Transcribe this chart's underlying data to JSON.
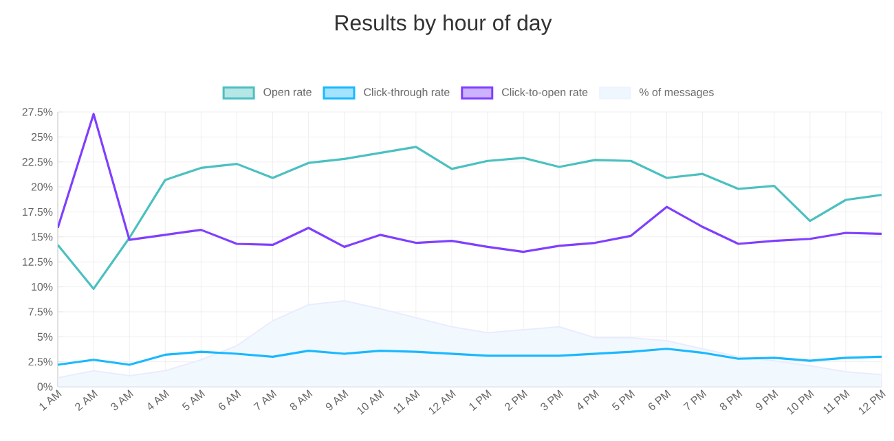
{
  "chart_data": {
    "type": "line",
    "title": "Results by hour of day",
    "categories": [
      "1 AM",
      "2 AM",
      "3 AM",
      "4 AM",
      "5 AM",
      "6 AM",
      "7 AM",
      "8 AM",
      "9 AM",
      "10 AM",
      "11 AM",
      "12 AM",
      "1 PM",
      "2 PM",
      "3 PM",
      "4 PM",
      "5 PM",
      "6 PM",
      "7 PM",
      "8 PM",
      "9 PM",
      "10 PM",
      "11 PM",
      "12 PM"
    ],
    "series": [
      {
        "name": "Open rate",
        "color": "#4bc0c0",
        "values": [
          14.2,
          9.8,
          14.9,
          20.7,
          21.9,
          22.3,
          20.9,
          22.4,
          22.8,
          23.4,
          24.0,
          21.8,
          22.6,
          22.9,
          22.0,
          22.7,
          22.6,
          20.9,
          21.3,
          19.8,
          20.1,
          16.6,
          18.7,
          19.2
        ]
      },
      {
        "name": "Click-through rate",
        "color": "#1ab8ff",
        "values": [
          2.2,
          2.7,
          2.2,
          3.2,
          3.5,
          3.3,
          3.0,
          3.6,
          3.3,
          3.6,
          3.5,
          3.3,
          3.1,
          3.1,
          3.1,
          3.3,
          3.5,
          3.8,
          3.4,
          2.8,
          2.9,
          2.6,
          2.9,
          3.0
        ]
      },
      {
        "name": "Click-to-open rate",
        "color": "#7f3fff",
        "values": [
          15.9,
          27.3,
          14.7,
          15.2,
          15.7,
          14.3,
          14.2,
          15.9,
          14.0,
          15.2,
          14.4,
          14.6,
          14.0,
          13.5,
          14.1,
          14.4,
          15.1,
          18.0,
          16.0,
          14.3,
          14.6,
          14.8,
          15.4,
          15.3
        ]
      },
      {
        "name": "% of messages",
        "type": "area",
        "color": "#e3f1fd",
        "values": [
          0.9,
          1.6,
          1.1,
          1.6,
          2.7,
          4.1,
          6.6,
          8.2,
          8.6,
          7.8,
          6.9,
          6.0,
          5.4,
          5.7,
          6.0,
          4.9,
          4.9,
          4.6,
          3.8,
          3.0,
          2.6,
          2.1,
          1.5,
          1.2
        ]
      }
    ],
    "ylim": [
      0,
      27.5
    ],
    "yticks": [
      {
        "value": 0,
        "label": "0%"
      },
      {
        "value": 2.5,
        "label": "2.5%"
      },
      {
        "value": 5,
        "label": "5%"
      },
      {
        "value": 7.5,
        "label": "7.5%"
      },
      {
        "value": 10,
        "label": "10%"
      },
      {
        "value": 12.5,
        "label": "12.5%"
      },
      {
        "value": 15,
        "label": "15%"
      },
      {
        "value": 17.5,
        "label": "17.5%"
      },
      {
        "value": 20,
        "label": "20%"
      },
      {
        "value": 22.5,
        "label": "22.5%"
      },
      {
        "value": 25,
        "label": "25%"
      },
      {
        "value": 27.5,
        "label": "27.5%"
      }
    ],
    "grid": true,
    "legend": "top"
  }
}
